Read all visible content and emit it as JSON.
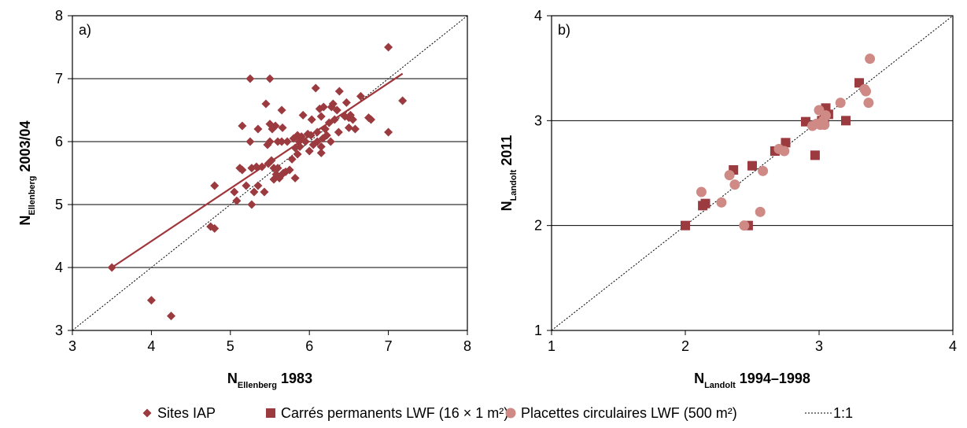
{
  "colors": {
    "sites_iap": "#9b3a3f",
    "carres": "#9b3a3f",
    "placettes": "#cf8a86",
    "regression": "#a0353b",
    "identity": "#000000",
    "grid": "#000000"
  },
  "chart_data": [
    {
      "type": "scatter",
      "panel_label": "a)",
      "xlabel": {
        "main": "N",
        "sub": "Ellenberg",
        "rest": " 1983"
      },
      "ylabel": {
        "main": "N",
        "sub": "Ellenberg",
        "rest": " 2003/04"
      },
      "xlim": [
        3,
        8
      ],
      "ylim": [
        3,
        8
      ],
      "xticks": [
        "3",
        "4",
        "5",
        "6",
        "7",
        "8"
      ],
      "yticks": [
        "3",
        "4",
        "5",
        "6",
        "7",
        "8"
      ],
      "grid": "horizontal",
      "identity_line": true,
      "regression_line": {
        "x": [
          3.5,
          7.18
        ],
        "y": [
          4.0,
          7.08
        ]
      },
      "series": [
        {
          "name": "Sites IAP",
          "marker": "diamond",
          "points": [
            [
              3.5,
              4.0
            ],
            [
              4.0,
              3.48
            ],
            [
              4.25,
              3.23
            ],
            [
              4.75,
              4.65
            ],
            [
              4.8,
              4.62
            ],
            [
              4.8,
              5.3
            ],
            [
              5.05,
              5.2
            ],
            [
              5.08,
              5.06
            ],
            [
              5.12,
              5.58
            ],
            [
              5.15,
              5.55
            ],
            [
              5.15,
              6.25
            ],
            [
              5.2,
              5.3
            ],
            [
              5.25,
              7.0
            ],
            [
              5.25,
              6.0
            ],
            [
              5.27,
              5.58
            ],
            [
              5.27,
              5.0
            ],
            [
              5.3,
              5.2
            ],
            [
              5.33,
              5.6
            ],
            [
              5.35,
              5.3
            ],
            [
              5.35,
              6.2
            ],
            [
              5.4,
              5.6
            ],
            [
              5.43,
              5.2
            ],
            [
              5.45,
              6.6
            ],
            [
              5.47,
              5.95
            ],
            [
              5.48,
              5.65
            ],
            [
              5.5,
              7.0
            ],
            [
              5.5,
              6.28
            ],
            [
              5.5,
              6.0
            ],
            [
              5.52,
              5.7
            ],
            [
              5.53,
              6.2
            ],
            [
              5.55,
              5.58
            ],
            [
              5.55,
              5.4
            ],
            [
              5.57,
              6.25
            ],
            [
              5.58,
              5.48
            ],
            [
              5.6,
              5.58
            ],
            [
              5.6,
              6.0
            ],
            [
              5.62,
              5.42
            ],
            [
              5.63,
              5.45
            ],
            [
              5.65,
              6.0
            ],
            [
              5.65,
              6.5
            ],
            [
              5.66,
              6.22
            ],
            [
              5.67,
              5.5
            ],
            [
              5.7,
              5.52
            ],
            [
              5.72,
              6.0
            ],
            [
              5.75,
              5.55
            ],
            [
              5.78,
              5.72
            ],
            [
              5.8,
              6.05
            ],
            [
              5.82,
              5.9
            ],
            [
              5.82,
              5.42
            ],
            [
              5.85,
              6.1
            ],
            [
              5.85,
              5.8
            ],
            [
              5.87,
              6.0
            ],
            [
              5.88,
              5.92
            ],
            [
              5.9,
              6.08
            ],
            [
              5.92,
              6.42
            ],
            [
              5.95,
              6.0
            ],
            [
              5.98,
              6.12
            ],
            [
              6.0,
              5.85
            ],
            [
              6.02,
              6.1
            ],
            [
              6.03,
              6.35
            ],
            [
              6.05,
              5.95
            ],
            [
              6.08,
              6.85
            ],
            [
              6.1,
              6.15
            ],
            [
              6.1,
              6.0
            ],
            [
              6.13,
              6.52
            ],
            [
              6.15,
              6.4
            ],
            [
              6.15,
              5.92
            ],
            [
              6.15,
              5.82
            ],
            [
              6.17,
              6.05
            ],
            [
              6.18,
              6.55
            ],
            [
              6.2,
              6.2
            ],
            [
              6.22,
              6.1
            ],
            [
              6.25,
              6.3
            ],
            [
              6.27,
              6.0
            ],
            [
              6.28,
              6.55
            ],
            [
              6.3,
              6.6
            ],
            [
              6.32,
              6.35
            ],
            [
              6.35,
              6.5
            ],
            [
              6.37,
              6.15
            ],
            [
              6.38,
              6.8
            ],
            [
              6.45,
              6.4
            ],
            [
              6.47,
              6.62
            ],
            [
              6.5,
              6.38
            ],
            [
              6.5,
              6.22
            ],
            [
              6.52,
              6.42
            ],
            [
              6.55,
              6.35
            ],
            [
              6.58,
              6.2
            ],
            [
              6.65,
              6.72
            ],
            [
              6.75,
              6.38
            ],
            [
              6.78,
              6.35
            ],
            [
              7.0,
              7.5
            ],
            [
              7.0,
              6.15
            ],
            [
              7.18,
              6.65
            ]
          ]
        }
      ]
    },
    {
      "type": "scatter",
      "panel_label": "b)",
      "xlabel": {
        "main": "N",
        "sub": "Landolt",
        "rest": " 1994–1998"
      },
      "ylabel": {
        "main": "N",
        "sub": "Landolt",
        "rest": " 2011"
      },
      "xlim": [
        1,
        4
      ],
      "ylim": [
        1,
        4
      ],
      "xticks": [
        "1",
        "2",
        "3",
        "4"
      ],
      "yticks": [
        "1",
        "2",
        "3",
        "4"
      ],
      "grid": "horizontal",
      "identity_line": true,
      "series": [
        {
          "name": "Carrés permanents LWF (16 × 1 m²)",
          "marker": "square",
          "points": [
            [
              2.0,
              2.0
            ],
            [
              2.13,
              2.19
            ],
            [
              2.15,
              2.21
            ],
            [
              2.36,
              2.53
            ],
            [
              2.47,
              2.0
            ],
            [
              2.5,
              2.57
            ],
            [
              2.67,
              2.71
            ],
            [
              2.75,
              2.79
            ],
            [
              2.9,
              2.99
            ],
            [
              2.97,
              2.67
            ],
            [
              3.02,
              3.0
            ],
            [
              3.04,
              3.02
            ],
            [
              3.05,
              3.12
            ],
            [
              3.07,
              3.06
            ],
            [
              3.2,
              3.0
            ],
            [
              3.3,
              3.36
            ]
          ]
        },
        {
          "name": "Placettes circulaires LWF (500 m²)",
          "marker": "circle",
          "points": [
            [
              2.12,
              2.32
            ],
            [
              2.27,
              2.22
            ],
            [
              2.33,
              2.48
            ],
            [
              2.37,
              2.39
            ],
            [
              2.44,
              2.0
            ],
            [
              2.56,
              2.13
            ],
            [
              2.58,
              2.52
            ],
            [
              2.7,
              2.73
            ],
            [
              2.74,
              2.71
            ],
            [
              2.95,
              2.95
            ],
            [
              2.98,
              2.97
            ],
            [
              3.0,
              3.1
            ],
            [
              3.01,
              2.96
            ],
            [
              3.03,
              3.0
            ],
            [
              3.04,
              2.96
            ],
            [
              3.05,
              3.05
            ],
            [
              3.16,
              3.17
            ],
            [
              3.34,
              3.3
            ],
            [
              3.35,
              3.28
            ],
            [
              3.37,
              3.17
            ],
            [
              3.38,
              3.59
            ]
          ]
        }
      ]
    }
  ],
  "legend": {
    "position": "bottom",
    "items": [
      {
        "marker": "diamond",
        "label": "Sites IAP"
      },
      {
        "marker": "square",
        "label": "Carrés permanents LWF (16 × 1 m²)"
      },
      {
        "marker": "circle",
        "label": "Placettes circulaires LWF (500 m²)"
      },
      {
        "marker": "dotted-line",
        "label": "1:1"
      }
    ]
  }
}
